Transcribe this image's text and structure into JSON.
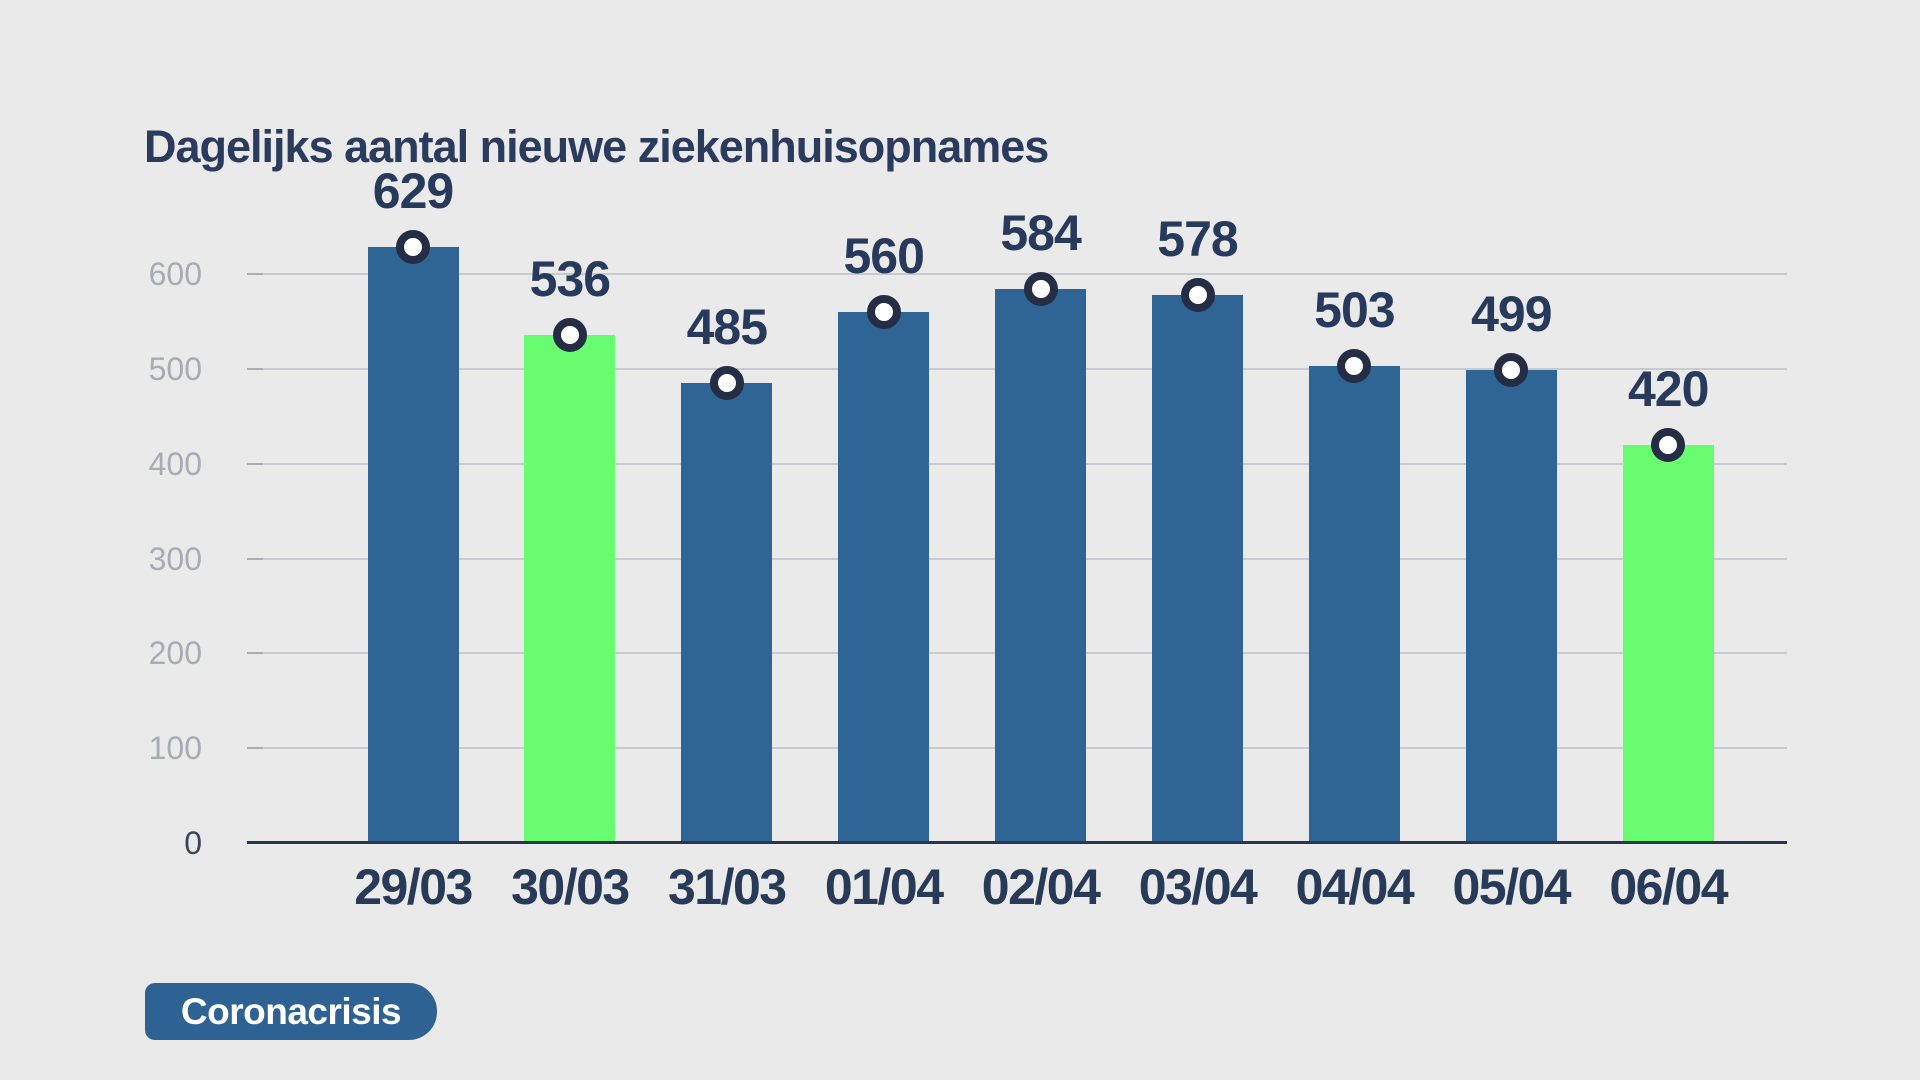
{
  "title": "Dagelijks aantal nieuwe ziekenhuisopnames",
  "badge": {
    "label": "Coronacrisis"
  },
  "colors": {
    "background": "#EAEAEA",
    "bar_blue": "#2F6595",
    "bar_green": "#68FC71",
    "text_navy": "#273A5B",
    "axis_line": "#2A3550",
    "gridline": "#C7CAD0",
    "y_label_gray": "#A6ABB4",
    "y_label_zero": "#3A455B",
    "marker_ring": "#242D43",
    "marker_fill": "#FFFFFF",
    "badge_background": "#2E6293",
    "badge_text": "#FFFFFF"
  },
  "chart_data": {
    "type": "bar",
    "title": "Dagelijks aantal nieuwe ziekenhuisopnames",
    "categories": [
      "29/03",
      "30/03",
      "31/03",
      "01/04",
      "02/04",
      "03/04",
      "04/04",
      "05/04",
      "06/04"
    ],
    "values": [
      629,
      536,
      485,
      560,
      584,
      578,
      503,
      499,
      420
    ],
    "bar_colors": [
      "blue",
      "green",
      "blue",
      "blue",
      "blue",
      "blue",
      "blue",
      "blue",
      "green"
    ],
    "highlighted_bars": [
      "30/03",
      "06/04"
    ],
    "data_labels_shown": true,
    "point_marker": "white circle with dark navy ring at top of each bar",
    "xlabel": "",
    "ylabel": "",
    "y_ticks": [
      0,
      100,
      200,
      300,
      400,
      500,
      600
    ],
    "ylim": [
      0,
      660
    ],
    "grid": "horizontal",
    "legend": "none"
  }
}
